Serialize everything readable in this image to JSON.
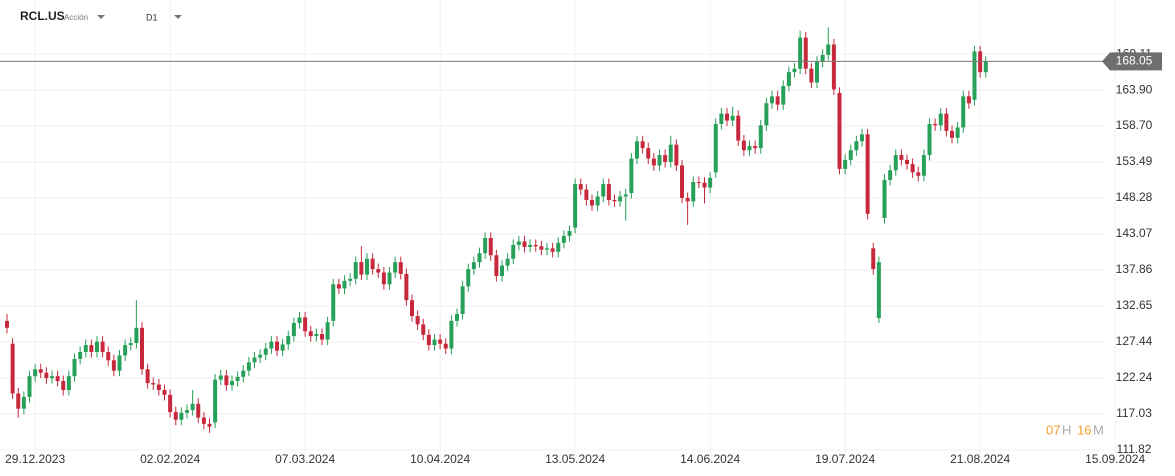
{
  "header": {
    "symbol": "RCL.US",
    "asset_type": "Acción",
    "timeframe": "D1"
  },
  "countdown": {
    "hours": "07",
    "hours_unit": "H",
    "minutes": "16",
    "minutes_unit": "M"
  },
  "chart_data": {
    "type": "candlestick",
    "up_color": "#27a05a",
    "down_color": "#c7283c",
    "grid": true,
    "current_price": 168.05,
    "ylim": [
      110.37,
      176.94
    ],
    "yticks": [
      111.82,
      117.03,
      122.24,
      127.44,
      132.65,
      137.86,
      143.07,
      148.28,
      153.49,
      {
        "value": 158.7,
        "label": "158.70"
      },
      {
        "value": 163.9,
        "label": "163.90"
      },
      169.11
    ],
    "categories": [
      null,
      null,
      null,
      null,
      null,
      "29.12.2023",
      null,
      null,
      null,
      null,
      null,
      null,
      null,
      null,
      null,
      null,
      null,
      null,
      null,
      null,
      null,
      null,
      null,
      null,
      null,
      null,
      null,
      null,
      null,
      "02.02.2024",
      null,
      null,
      null,
      null,
      null,
      null,
      null,
      null,
      null,
      null,
      null,
      null,
      null,
      null,
      null,
      null,
      null,
      null,
      null,
      null,
      null,
      null,
      null,
      "07.03.2024",
      null,
      null,
      null,
      null,
      null,
      null,
      null,
      null,
      null,
      null,
      null,
      null,
      null,
      null,
      null,
      null,
      null,
      null,
      null,
      null,
      null,
      null,
      null,
      "10.04.2024",
      null,
      null,
      null,
      null,
      null,
      null,
      null,
      null,
      null,
      null,
      null,
      null,
      null,
      null,
      null,
      null,
      null,
      null,
      null,
      null,
      null,
      null,
      null,
      "13.05.2024",
      null,
      null,
      null,
      null,
      null,
      null,
      null,
      null,
      null,
      null,
      null,
      null,
      null,
      null,
      null,
      null,
      null,
      null,
      null,
      null,
      null,
      null,
      null,
      "14.06.2024",
      null,
      null,
      null,
      null,
      null,
      null,
      null,
      null,
      null,
      null,
      null,
      null,
      null,
      null,
      null,
      null,
      null,
      null,
      null,
      null,
      null,
      null,
      null,
      "19.07.2024",
      null,
      null,
      null,
      null,
      null,
      null,
      null,
      null,
      null,
      null,
      null,
      null,
      null,
      null,
      null,
      null,
      null,
      null,
      null,
      null,
      null,
      null,
      null,
      "21.08.2024",
      null,
      null,
      null,
      null,
      null,
      null,
      null,
      null,
      null,
      null,
      null,
      null,
      null,
      null,
      null,
      null,
      null,
      null,
      null,
      null,
      null,
      null,
      null,
      "15.09.2024"
    ],
    "open": [
      130.5,
      127.2,
      120,
      117.8,
      119.5,
      122.5,
      123.5,
      123,
      122.2,
      122.5,
      121.8,
      120.5,
      122.5,
      125,
      126,
      127,
      126,
      127.5,
      126,
      124.8,
      123.3,
      125.5,
      127,
      127.3,
      129.5,
      123.5,
      121.5,
      121.3,
      120.5,
      119.8,
      117.3,
      116.2,
      117.2,
      117.6,
      118.5,
      116.5,
      115.6,
      115.8,
      122,
      122.6,
      121.2,
      121.8,
      122.4,
      123.3,
      124.5,
      125.2,
      125.6,
      126.5,
      127.5,
      126.2,
      127.1,
      128.3,
      130.2,
      131,
      129,
      128.3,
      128.6,
      127.8,
      130.5,
      135.8,
      135.2,
      136.3,
      136.6,
      139,
      137.2,
      139.5,
      138,
      137.5,
      135.8,
      137.5,
      139,
      137.3,
      133.5,
      131.2,
      130,
      128.5,
      127,
      127.8,
      127.2,
      126.5,
      130.5,
      131.5,
      135.5,
      138,
      139,
      140.3,
      142.5,
      140,
      137,
      138.5,
      139.5,
      141.5,
      142,
      141.2,
      141.5,
      141.3,
      140.8,
      141,
      140.5,
      141.8,
      142.8,
      144,
      150.3,
      149.5,
      148,
      147.2,
      148.5,
      150.3,
      148,
      147.8,
      148.5,
      149,
      154,
      156.5,
      155.5,
      154,
      153,
      154.5,
      153.5,
      156,
      153,
      148.3,
      147.8,
      150.6,
      150.5,
      149.8,
      152,
      159,
      160.5,
      159.5,
      160.2,
      156.6,
      155.2,
      155.8,
      155.5,
      158.8,
      162,
      163,
      161.8,
      164.5,
      166.5,
      167,
      171.5,
      167,
      165,
      168,
      169,
      170.5,
      163.5,
      152.5,
      153.8,
      155.2,
      156.5,
      157.5,
      141,
      130.9,
      145.4,
      150.9,
      152.3,
      154.5,
      153.8,
      153.2,
      152,
      151.5,
      154.5,
      159,
      158.8,
      160.5,
      158,
      157,
      158.5,
      163,
      162.5,
      169.5,
      166.5,
      null,
      null,
      null,
      null,
      null,
      null,
      null,
      null,
      null,
      null,
      null,
      null,
      null,
      null,
      null,
      null,
      null,
      null,
      null,
      null,
      null,
      null,
      null
    ],
    "high": [
      131.5,
      128,
      120.8,
      120.3,
      123.3,
      124.3,
      124.3,
      123.8,
      123.3,
      123.3,
      122.6,
      123.3,
      125.8,
      126.8,
      127.8,
      127.8,
      128.3,
      128.3,
      126.8,
      125.6,
      126.3,
      127.8,
      128.1,
      133.5,
      130.3,
      124.3,
      122.3,
      122.1,
      121.3,
      120.6,
      118.1,
      118,
      118.4,
      120.5,
      119.3,
      117.3,
      116.4,
      122.8,
      123.4,
      123.4,
      122.6,
      123.2,
      124.1,
      125.3,
      126,
      126.4,
      127.3,
      128.3,
      128.3,
      127.9,
      129.1,
      131,
      131.8,
      131.8,
      129.8,
      129.4,
      129.4,
      131.1,
      136.6,
      136.6,
      137.1,
      137.4,
      139.8,
      141.3,
      140.3,
      140.3,
      138.8,
      138.3,
      138.3,
      139.8,
      139.8,
      138.1,
      134.3,
      132,
      130.8,
      129.3,
      128.6,
      128.6,
      128,
      131.3,
      132.3,
      136.3,
      138.8,
      139.8,
      141.1,
      143.3,
      143.3,
      140.8,
      139.3,
      140.3,
      142.3,
      142.8,
      142.8,
      142.3,
      142.3,
      142.1,
      141.8,
      141.8,
      142.6,
      143.6,
      144.3,
      151.1,
      151.1,
      150.3,
      148.8,
      149.3,
      151.1,
      151.1,
      148.8,
      149.3,
      149.6,
      154.8,
      157.3,
      157.3,
      156.3,
      154.8,
      155.3,
      155.3,
      157.3,
      156.8,
      153.8,
      149.1,
      151.4,
      151.4,
      151.3,
      152,
      159.8,
      161.3,
      161.3,
      161.5,
      161,
      157.4,
      156.6,
      156.6,
      159.6,
      162.8,
      163.8,
      163.8,
      165.3,
      167.3,
      167.8,
      172.5,
      172.3,
      167.8,
      168.8,
      169.8,
      173,
      171.3,
      164.3,
      154.6,
      156,
      157.3,
      158.3,
      158.3,
      141.8,
      139.8,
      151.7,
      153.1,
      155.3,
      155.3,
      154.6,
      154,
      152.8,
      155.3,
      159.8,
      159.8,
      161.3,
      161.3,
      158.8,
      159.3,
      163.8,
      163.8,
      170.3,
      170.3,
      168.8,
      null,
      null,
      null,
      null,
      null,
      null,
      null,
      null,
      null,
      null,
      null,
      null,
      null,
      null,
      null,
      null,
      null,
      null,
      null,
      null,
      null,
      null,
      null
    ],
    "low": [
      128.7,
      119.2,
      116.5,
      117,
      118.7,
      121.7,
      122.2,
      121.4,
      121.4,
      121,
      119.7,
      119.7,
      121.7,
      124.2,
      125.2,
      125.2,
      125.2,
      125.2,
      124,
      122.5,
      122.5,
      124.7,
      126.2,
      126.5,
      122.7,
      120.7,
      120.5,
      119.7,
      119,
      116.5,
      115.4,
      115.4,
      116.4,
      116.8,
      115.7,
      114.8,
      114.3,
      115,
      121.2,
      120.4,
      120.4,
      121,
      121.6,
      122.5,
      123.7,
      124.4,
      124.8,
      125.7,
      125.4,
      125.4,
      126.3,
      127.5,
      129.4,
      128.2,
      127.5,
      127.5,
      127,
      127,
      129.7,
      134.4,
      134.4,
      135.5,
      135.8,
      136.4,
      136.4,
      137.2,
      136.7,
      135,
      135,
      136.7,
      136.5,
      132.7,
      130.4,
      129.2,
      127.7,
      126.2,
      126.2,
      126.4,
      125.7,
      125.7,
      129.7,
      130.7,
      134.7,
      137.2,
      138.2,
      139.5,
      139.2,
      136.2,
      136.2,
      137.7,
      138.7,
      140.7,
      140.4,
      140.4,
      140.5,
      140,
      140,
      139.7,
      139.7,
      141,
      142,
      143.2,
      148.7,
      147.2,
      146.4,
      146.4,
      147.7,
      147.2,
      147,
      147,
      145,
      148.2,
      153.2,
      154.7,
      153.2,
      152.2,
      152.2,
      152.7,
      152.7,
      152.2,
      147.5,
      144.4,
      147,
      149.7,
      147.5,
      149,
      151.2,
      158.2,
      158.7,
      158.7,
      155.8,
      154.4,
      154.4,
      154.7,
      154.7,
      158,
      161.2,
      161,
      161,
      163.7,
      165.7,
      166.2,
      166.2,
      164.2,
      164.2,
      167.2,
      168.2,
      163.2,
      151.7,
      151.7,
      153,
      154.4,
      155.7,
      145.2,
      137.2,
      130.2,
      144.6,
      150.1,
      151.5,
      153,
      152.4,
      151.2,
      150.7,
      150.7,
      153.7,
      158,
      158,
      157.2,
      156.2,
      156.2,
      157.7,
      161.2,
      161.7,
      165.7,
      165.7,
      null,
      null,
      null,
      null,
      null,
      null,
      null,
      null,
      null,
      null,
      null,
      null,
      null,
      null,
      null,
      null,
      null,
      null,
      null,
      null,
      null,
      null,
      null
    ],
    "close": [
      129.5,
      120,
      117.8,
      119.5,
      122.5,
      123.5,
      123,
      122.2,
      122.5,
      121.8,
      120.5,
      122.5,
      125,
      126,
      127,
      126,
      127.5,
      126,
      124.8,
      123.3,
      125.5,
      127,
      127.3,
      129.5,
      123.5,
      121.5,
      121.3,
      120.5,
      119.8,
      117.3,
      116.2,
      117.2,
      117.6,
      118.5,
      116.5,
      115.6,
      115.2,
      122,
      122.6,
      121.2,
      121.8,
      122.4,
      123.3,
      124.5,
      125.2,
      125.6,
      126.5,
      127.5,
      126.2,
      127.1,
      128.3,
      130.2,
      131,
      129,
      128.3,
      128.6,
      127.8,
      130.3,
      135.8,
      135.2,
      136.3,
      136.6,
      139,
      137.2,
      139.5,
      138,
      137.5,
      135.8,
      137.5,
      139,
      137.3,
      133.5,
      131.2,
      130,
      128.5,
      127,
      127.8,
      127.2,
      126.5,
      130.5,
      131.5,
      135.5,
      138,
      139,
      140.3,
      142.5,
      140,
      137,
      138.5,
      139.5,
      141.5,
      142,
      141.2,
      141.5,
      141.3,
      140.8,
      141,
      140.5,
      141.8,
      142.8,
      143.5,
      150.3,
      149.5,
      148,
      147.2,
      148.5,
      150.3,
      148,
      147.8,
      148.5,
      148.8,
      154,
      156.5,
      155.5,
      154,
      153,
      154.5,
      153.5,
      156,
      153,
      148.3,
      147.8,
      150.6,
      150.5,
      149.8,
      151.2,
      159,
      160.5,
      159.5,
      160.2,
      156.6,
      155.2,
      155.8,
      155.5,
      158.8,
      162,
      163,
      161.8,
      164.5,
      166.5,
      167,
      171.5,
      167,
      165,
      168,
      169,
      170.5,
      164,
      152.5,
      153.8,
      155.2,
      156.5,
      157.5,
      146,
      138,
      139,
      150.9,
      152.3,
      154.5,
      153.8,
      153.2,
      152,
      151.5,
      154.5,
      159,
      158.8,
      160.5,
      158,
      157,
      158.5,
      163,
      162,
      169.5,
      166.5,
      168.05,
      null,
      null,
      null,
      null,
      null,
      null,
      null,
      null,
      null,
      null,
      null,
      null,
      null,
      null,
      null,
      null,
      null,
      null,
      null,
      null,
      null,
      null,
      null
    ]
  }
}
